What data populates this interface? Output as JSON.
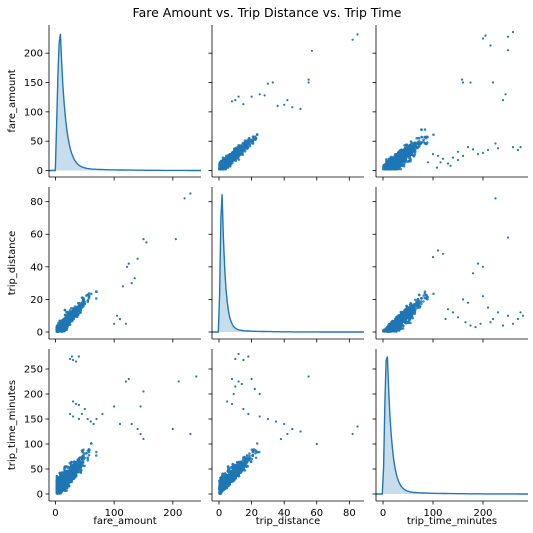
{
  "chart_data": {
    "type": "scatter",
    "title": "Fare Amount vs. Trip Distance vs. Trip Time",
    "variables": [
      "fare_amount",
      "trip_distance",
      "trip_time_minutes"
    ],
    "diagonal": "kde",
    "colors": {
      "points": "#1f77b4",
      "kde_fill": "#1f77b4",
      "axis": "#000000"
    },
    "axes": {
      "fare_amount": {
        "lim": [
          -11,
          248
        ],
        "ticks": [
          0,
          100,
          200
        ],
        "y_ticks": [
          0,
          50,
          100,
          150,
          200
        ]
      },
      "trip_distance": {
        "lim": [
          -4.3,
          89
        ],
        "ticks": [
          0,
          20,
          40,
          60,
          80
        ]
      },
      "trip_time_minutes": {
        "lim": [
          -14,
          290
        ],
        "ticks": [
          0,
          100,
          200
        ],
        "y_ticks": [
          0,
          50,
          100,
          150,
          200,
          250
        ]
      }
    },
    "pairs": [
      {
        "x": "trip_distance",
        "y": "fare_amount",
        "points": [
          [
            85,
            232
          ],
          [
            82,
            223
          ],
          [
            57,
            204
          ],
          [
            55,
            155
          ],
          [
            55,
            150
          ],
          [
            30,
            148
          ],
          [
            33,
            150
          ],
          [
            28,
            128
          ],
          [
            25,
            130
          ],
          [
            20,
            126
          ],
          [
            12,
            126
          ],
          [
            10,
            120
          ],
          [
            8,
            118
          ],
          [
            15,
            113
          ],
          [
            40,
            112
          ],
          [
            42,
            120
          ],
          [
            45,
            108
          ],
          [
            50,
            105
          ],
          [
            36,
            110
          ]
        ]
      },
      {
        "x": "trip_time_minutes",
        "y": "fare_amount",
        "points": [
          [
            260,
            236
          ],
          [
            250,
            228
          ],
          [
            250,
            205
          ],
          [
            205,
            230
          ],
          [
            215,
            213
          ],
          [
            200,
            225
          ],
          [
            160,
            150
          ],
          [
            158,
            155
          ],
          [
            175,
            150
          ],
          [
            220,
            150
          ],
          [
            240,
            120
          ],
          [
            245,
            130
          ],
          [
            260,
            40
          ],
          [
            270,
            35
          ],
          [
            275,
            40
          ],
          [
            230,
            38
          ],
          [
            225,
            46
          ],
          [
            210,
            35
          ],
          [
            200,
            30
          ],
          [
            190,
            28
          ],
          [
            180,
            36
          ],
          [
            170,
            40
          ],
          [
            160,
            25
          ],
          [
            150,
            18
          ],
          [
            140,
            22
          ],
          [
            130,
            12
          ],
          [
            120,
            20
          ],
          [
            110,
            25
          ],
          [
            100,
            28
          ],
          [
            90,
            14
          ],
          [
            150,
            32
          ],
          [
            135,
            8
          ],
          [
            115,
            14
          ],
          [
            108,
            5
          ]
        ]
      },
      {
        "x": "fare_amount",
        "y": "trip_distance",
        "points": [
          [
            230,
            85
          ],
          [
            220,
            82
          ],
          [
            205,
            57
          ],
          [
            155,
            55
          ],
          [
            150,
            57
          ],
          [
            140,
            45
          ],
          [
            125,
            42
          ],
          [
            122,
            40
          ],
          [
            115,
            28
          ],
          [
            105,
            10
          ],
          [
            110,
            8
          ],
          [
            100,
            5
          ],
          [
            120,
            5
          ],
          [
            130,
            30
          ],
          [
            135,
            33
          ]
        ]
      },
      {
        "x": "trip_time_minutes",
        "y": "trip_distance",
        "points": [
          [
            225,
            82
          ],
          [
            250,
            58
          ],
          [
            200,
            40
          ],
          [
            190,
            42
          ],
          [
            180,
            36
          ],
          [
            120,
            48
          ],
          [
            110,
            50
          ],
          [
            100,
            46
          ],
          [
            160,
            20
          ],
          [
            170,
            18
          ],
          [
            200,
            22
          ],
          [
            210,
            15
          ],
          [
            230,
            12
          ],
          [
            250,
            10
          ],
          [
            270,
            8
          ],
          [
            275,
            12
          ],
          [
            280,
            10
          ],
          [
            260,
            5
          ],
          [
            240,
            4
          ],
          [
            220,
            8
          ],
          [
            215,
            6
          ],
          [
            195,
            5
          ],
          [
            185,
            3
          ],
          [
            175,
            4
          ],
          [
            165,
            6
          ],
          [
            150,
            9
          ],
          [
            140,
            12
          ],
          [
            130,
            14
          ],
          [
            125,
            8
          ]
        ]
      },
      {
        "x": "fare_amount",
        "y": "trip_time_minutes",
        "points": [
          [
            25,
            270
          ],
          [
            30,
            268
          ],
          [
            28,
            275
          ],
          [
            40,
            275
          ],
          [
            35,
            265
          ],
          [
            30,
            185
          ],
          [
            35,
            180
          ],
          [
            40,
            178
          ],
          [
            25,
            160
          ],
          [
            30,
            155
          ],
          [
            45,
            160
          ],
          [
            40,
            150
          ],
          [
            50,
            170
          ],
          [
            55,
            150
          ],
          [
            60,
            145
          ],
          [
            65,
            140
          ],
          [
            70,
            150
          ],
          [
            80,
            160
          ],
          [
            100,
            175
          ],
          [
            120,
            225
          ],
          [
            125,
            230
          ],
          [
            150,
            205
          ],
          [
            145,
            175
          ],
          [
            130,
            140
          ],
          [
            140,
            130
          ],
          [
            145,
            120
          ],
          [
            150,
            110
          ],
          [
            210,
            225
          ],
          [
            240,
            235
          ],
          [
            200,
            130
          ],
          [
            230,
            120
          ],
          [
            110,
            140
          ]
        ]
      },
      {
        "x": "trip_distance",
        "y": "trip_time_minutes",
        "points": [
          [
            10,
            270
          ],
          [
            15,
            268
          ],
          [
            12,
            280
          ],
          [
            18,
            275
          ],
          [
            8,
            230
          ],
          [
            12,
            225
          ],
          [
            10,
            215
          ],
          [
            14,
            220
          ],
          [
            9,
            200
          ],
          [
            20,
            230
          ],
          [
            22,
            210
          ],
          [
            25,
            200
          ],
          [
            5,
            185
          ],
          [
            8,
            180
          ],
          [
            15,
            170
          ],
          [
            18,
            160
          ],
          [
            25,
            155
          ],
          [
            30,
            150
          ],
          [
            35,
            145
          ],
          [
            40,
            140
          ],
          [
            45,
            130
          ],
          [
            42,
            120
          ],
          [
            38,
            110
          ],
          [
            50,
            125
          ],
          [
            55,
            235
          ],
          [
            82,
            120
          ],
          [
            85,
            135
          ],
          [
            60,
            100
          ]
        ]
      }
    ],
    "marginals": [
      {
        "var": "fare_amount",
        "peak_value": 8,
        "peak_y": 233
      },
      {
        "var": "trip_distance",
        "peak_value": 1.8,
        "peak_y": 84.5
      },
      {
        "var": "trip_time_minutes",
        "peak_value": 8,
        "peak_y": 275
      }
    ]
  }
}
